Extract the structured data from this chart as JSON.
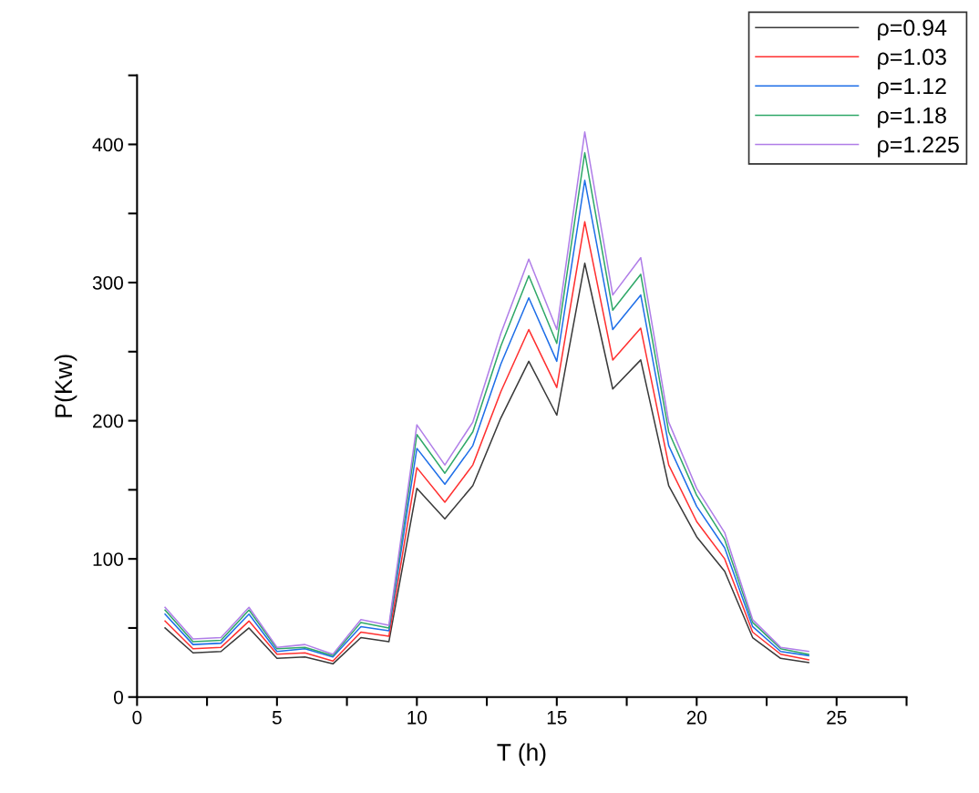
{
  "chart_data": {
    "type": "line",
    "xlabel": "T (h)",
    "ylabel": "P(Kw)",
    "x": [
      1,
      2,
      3,
      4,
      5,
      6,
      7,
      8,
      9,
      10,
      11,
      12,
      13,
      14,
      15,
      16,
      17,
      18,
      19,
      20,
      21,
      22,
      23,
      24
    ],
    "xlim": [
      0,
      27.5
    ],
    "xticks": [
      0,
      {
        "value": 2.5,
        "label": null
      },
      5,
      {
        "value": 7.5,
        "label": null
      },
      10,
      {
        "value": 12.5,
        "label": null
      },
      15,
      {
        "value": 17.5,
        "label": null
      },
      20,
      {
        "value": 22.5,
        "label": null
      },
      25,
      {
        "value": 27.5,
        "label": null
      }
    ],
    "ylim": [
      0,
      450
    ],
    "yticks": [
      0,
      {
        "value": 50,
        "label": null
      },
      100,
      {
        "value": 150,
        "label": null
      },
      200,
      {
        "value": 250,
        "label": null
      },
      300,
      {
        "value": 350,
        "label": null
      },
      400,
      {
        "value": 450,
        "label": null
      }
    ],
    "grid": false,
    "legend": "top right",
    "marker": "none",
    "line_style": "solid",
    "series": [
      {
        "name": "ρ=0.94",
        "color": "#3a3a3a",
        "values": [
          50,
          32,
          33,
          50,
          28,
          29,
          24,
          43,
          40,
          151,
          129,
          153,
          202,
          243,
          204,
          314,
          223,
          244,
          153,
          116,
          91,
          43,
          28,
          25
        ]
      },
      {
        "name": "ρ=1.03",
        "color": "#ff3030",
        "values": [
          55,
          35,
          36,
          55,
          31,
          32,
          26,
          47,
          44,
          166,
          141,
          168,
          221,
          266,
          224,
          344,
          244,
          267,
          168,
          127,
          100,
          47,
          31,
          27
        ]
      },
      {
        "name": "ρ=1.12",
        "color": "#1f6fe8",
        "values": [
          60,
          38,
          39,
          60,
          33,
          35,
          29,
          51,
          48,
          180,
          154,
          182,
          241,
          289,
          243,
          374,
          266,
          291,
          182,
          138,
          108,
          51,
          33,
          30
        ]
      },
      {
        "name": "ρ=1.18",
        "color": "#2fa868",
        "values": [
          63,
          40,
          41,
          63,
          35,
          36,
          30,
          54,
          50,
          190,
          162,
          192,
          254,
          305,
          256,
          394,
          280,
          306,
          192,
          146,
          114,
          54,
          35,
          31
        ]
      },
      {
        "name": "ρ=1.225",
        "color": "#b07ee8",
        "values": [
          65,
          42,
          43,
          65,
          36,
          38,
          31,
          56,
          52,
          197,
          168,
          199,
          263,
          317,
          266,
          409,
          291,
          318,
          199,
          151,
          119,
          56,
          36,
          33
        ]
      }
    ]
  }
}
